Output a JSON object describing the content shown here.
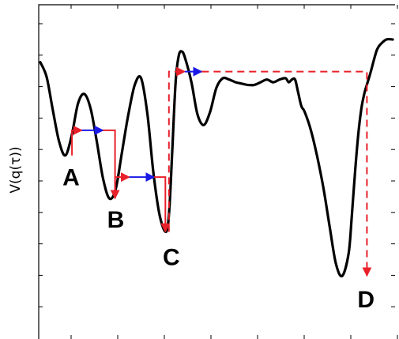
{
  "chart_data": {
    "type": "line",
    "title": "",
    "xlabel": "",
    "ylabel": "V(q(τ))",
    "xlim": [
      0,
      100
    ],
    "ylim": [
      0,
      100
    ],
    "grid": false,
    "x_tick_count": 8,
    "y_tick_count": 10,
    "curve_color": "#000000",
    "series": [
      {
        "values_x": [
          0,
          1.8,
          3.5,
          5.3,
          7.1,
          8.9,
          10.7,
          12.5,
          14.3,
          16.0,
          17.8,
          19.6,
          21.4,
          23.2,
          25.0,
          26.8,
          28.6,
          30.4,
          32.1,
          33.9,
          35.7,
          36.6,
          37.5,
          38.4,
          39.3,
          40.2,
          41.1,
          42.9,
          44.6,
          46.4,
          48.2,
          50.0,
          51.8,
          53.6,
          55.4,
          57.1,
          58.9,
          60.7,
          62.5,
          64.3,
          66.1,
          67.9,
          69.6,
          70.5,
          71.4,
          72.3,
          73.2,
          74.1,
          75.0,
          76.8,
          78.6,
          80.4,
          82.1,
          83.9,
          85.7,
          87.5,
          88.4,
          89.3,
          90.2,
          91.1,
          92.0,
          92.9,
          93.8,
          94.6,
          95.5,
          96.4,
          98.2,
          100
        ],
        "values_y": [
          91.5,
          86.0,
          74.0,
          62.0,
          56.6,
          64.0,
          76.0,
          79.6,
          74.0,
          62.0,
          48.0,
          40.5,
          44.0,
          58.0,
          72.0,
          83.0,
          85.5,
          72.0,
          50.0,
          34.0,
          28.0,
          36.0,
          60.0,
          84.0,
          94.0,
          95.5,
          93.0,
          84.0,
          72.0,
          68.0,
          73.0,
          82.0,
          85.5,
          85.0,
          84.0,
          83.5,
          83.0,
          83.0,
          84.0,
          85.0,
          84.0,
          85.0,
          85.5,
          84.0,
          85.0,
          85.0,
          80.0,
          75.0,
          73.0,
          66.0,
          56.0,
          44.0,
          30.0,
          16.0,
          11.5,
          20.0,
          34.0,
          50.0,
          64.0,
          74.0,
          80.0,
          84.0,
          88.0,
          92.0,
          96.0,
          98.0,
          100.0,
          100.0
        ]
      }
    ],
    "minima": [
      {
        "label": "A",
        "x": 9.0,
        "y": 56.6
      },
      {
        "label": "B",
        "x": 21.2,
        "y": 40.5
      },
      {
        "label": "C",
        "x": 37.0,
        "y": 28.0
      },
      {
        "label": "D",
        "x": 92.7,
        "y": 11.5
      }
    ],
    "transition_paths": [
      {
        "color": "#e8202a",
        "style": "solid",
        "points": [
          [
            9.0,
            56.6
          ],
          [
            9.0,
            66.0
          ],
          [
            11.8,
            66.0
          ]
        ],
        "arrow": "end"
      },
      {
        "color": "#1a1ae6",
        "style": "solid",
        "points": [
          [
            11.8,
            66.0
          ],
          [
            17.8,
            66.0
          ]
        ],
        "arrow": "end"
      },
      {
        "color": "#e8202a",
        "style": "solid",
        "points": [
          [
            17.8,
            66.0
          ],
          [
            21.2,
            66.0
          ],
          [
            21.2,
            40.5
          ]
        ],
        "arrow": "end"
      },
      {
        "color": "#e8202a",
        "style": "solid",
        "points": [
          [
            21.2,
            40.5
          ],
          [
            21.2,
            48.5
          ],
          [
            25.3,
            48.5
          ]
        ],
        "arrow": "end"
      },
      {
        "color": "#1a1ae6",
        "style": "solid",
        "points": [
          [
            25.3,
            48.5
          ],
          [
            32.3,
            48.5
          ]
        ],
        "arrow": "end"
      },
      {
        "color": "#e8202a",
        "style": "solid",
        "points": [
          [
            32.3,
            48.5
          ],
          [
            35.5,
            48.5
          ],
          [
            35.5,
            28.0
          ]
        ],
        "arrow": "end"
      },
      {
        "color": "#e8202a",
        "style": "dashed",
        "points": [
          [
            36.5,
            28.0
          ],
          [
            36.5,
            88.0
          ],
          [
            41.0,
            88.0
          ]
        ],
        "arrow": "end"
      },
      {
        "color": "#1a1ae6",
        "style": "dashed",
        "points": [
          [
            41.0,
            88.0
          ],
          [
            45.8,
            88.0
          ]
        ],
        "arrow": "end"
      },
      {
        "color": "#e8202a",
        "style": "dashed",
        "points": [
          [
            45.8,
            88.0
          ],
          [
            92.7,
            88.0
          ],
          [
            92.7,
            11.5
          ]
        ],
        "arrow": "end"
      }
    ]
  }
}
